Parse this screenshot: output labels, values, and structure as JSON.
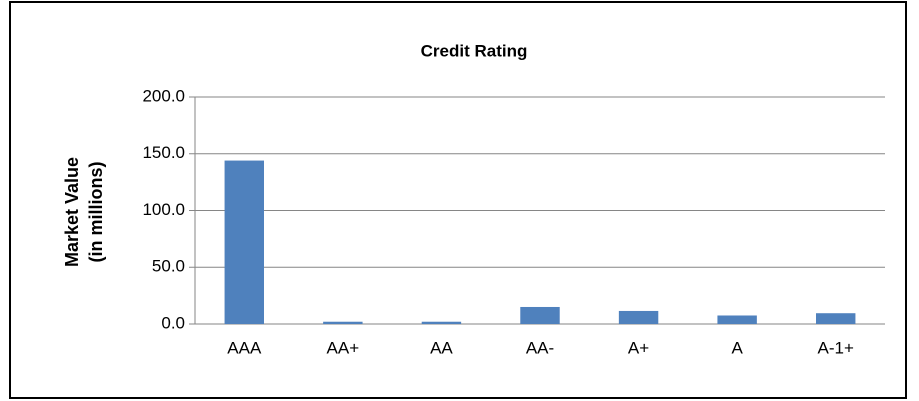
{
  "chart_data": {
    "type": "bar",
    "title": "Credit Rating",
    "y_label": [
      "Market Value",
      "(in millions)"
    ],
    "categories": [
      "AAA",
      "AA+",
      "AA",
      "AA-",
      "A+",
      "A",
      "A-1+"
    ],
    "values": [
      144,
      2,
      2,
      15,
      11.5,
      7.5,
      9.5
    ],
    "color": "#4f81bd",
    "ylim": [
      0,
      200
    ],
    "yticks": [
      {
        "value": 0,
        "label": "0.0"
      },
      {
        "value": 50,
        "label": "50.0"
      },
      {
        "value": 100,
        "label": "100.0"
      },
      {
        "value": 150,
        "label": "150.0"
      },
      {
        "value": 200,
        "label": "200.0"
      }
    ],
    "grid": true
  }
}
